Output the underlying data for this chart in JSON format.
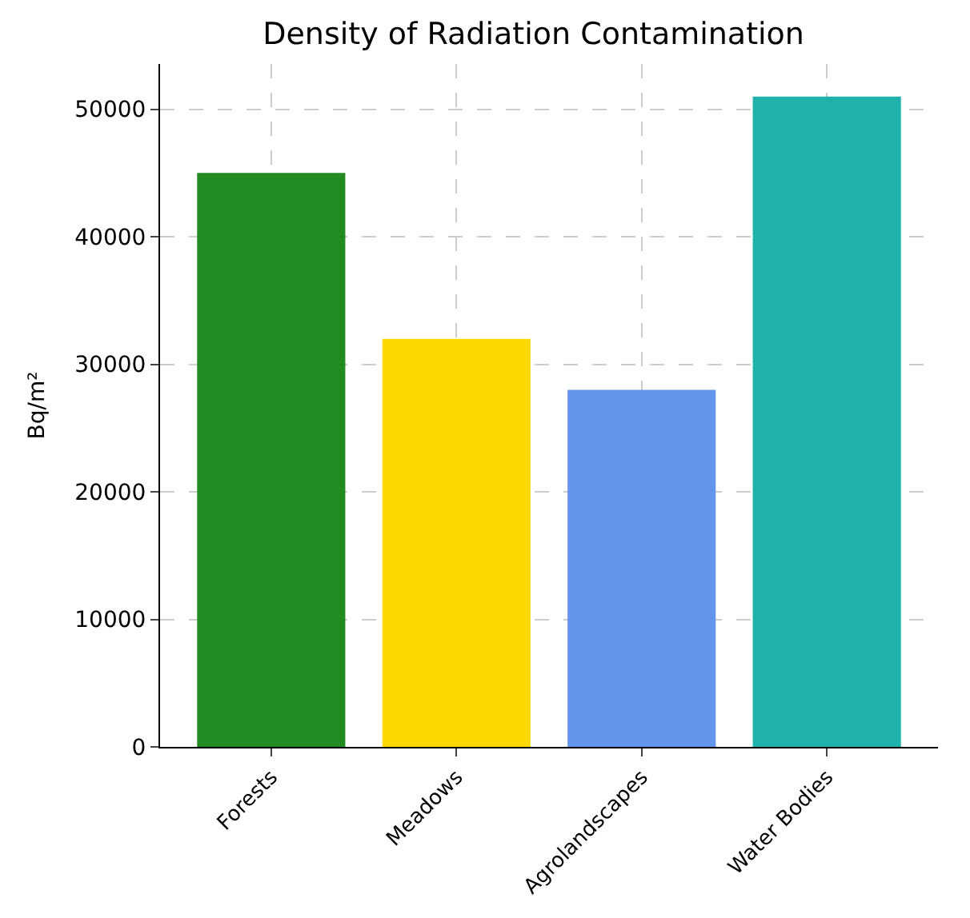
{
  "chart_data": {
    "type": "bar",
    "title": "Density of Radiation Contamination",
    "ylabel": "Bq/m²",
    "categories": [
      "Forests",
      "Meadows",
      "Agrolandscapes",
      "Water Bodies"
    ],
    "values": [
      45000,
      32000,
      28000,
      51000
    ],
    "colors": [
      "#228b22",
      "#ffd700",
      "#6495ed",
      "#20b2aa"
    ],
    "ylim": [
      0,
      53550
    ],
    "yticks": [
      0,
      10000,
      20000,
      30000,
      40000,
      50000
    ],
    "grid": true
  }
}
